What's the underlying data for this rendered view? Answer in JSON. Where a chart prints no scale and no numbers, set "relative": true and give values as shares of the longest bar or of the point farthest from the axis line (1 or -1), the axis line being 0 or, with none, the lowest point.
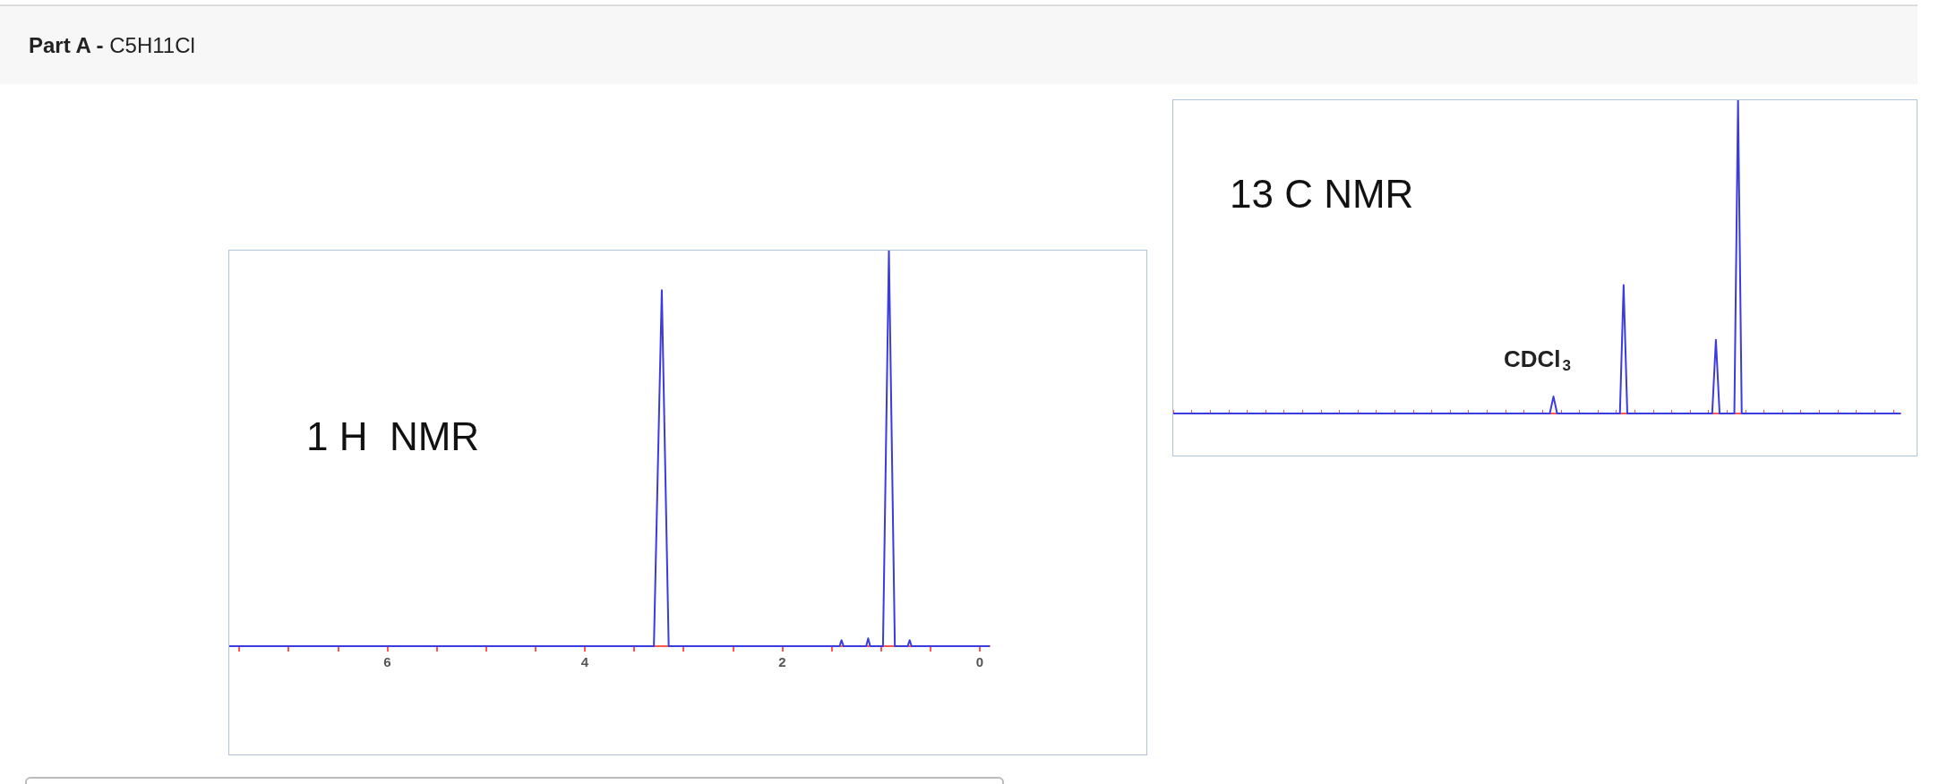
{
  "chart_data": [
    {
      "type": "other",
      "title": "Part A -",
      "subtitle": "C5H11Cl"
    },
    {
      "type": "line",
      "title": "1 H  NMR",
      "relative": true,
      "marker": "none",
      "tick_labels": "x",
      "xlim": [
        7.6,
        -0.1
      ],
      "xticks": [
        {
          "value": 7.5,
          "label": null
        },
        {
          "value": 7,
          "label": null
        },
        {
          "value": 6.5,
          "label": null
        },
        6,
        {
          "value": 5.5,
          "label": null
        },
        {
          "value": 5,
          "label": null
        },
        {
          "value": 4.5,
          "label": null
        },
        4,
        {
          "value": 3.5,
          "label": null
        },
        {
          "value": 3,
          "label": null
        },
        {
          "value": 2.5,
          "label": null
        },
        2,
        {
          "value": 1.5,
          "label": null
        },
        {
          "value": 1,
          "label": null
        },
        {
          "value": 0.5,
          "label": null
        },
        0
      ],
      "series": [
        {
          "color": "#3b3be0",
          "x": [
            7.6,
            3.3,
            3.22,
            3.15,
            1.42,
            1.4,
            1.38,
            1.15,
            1.13,
            1.11,
            0.98,
            0.92,
            0.86,
            0.73,
            0.71,
            0.69,
            -0.1
          ],
          "values": [
            0,
            0,
            0.9,
            0,
            0,
            0.015,
            0,
            0,
            0.02,
            0,
            0,
            1,
            0,
            0,
            0.015,
            0,
            0
          ]
        }
      ]
    },
    {
      "type": "line",
      "title": "13 C NMR",
      "relative": true,
      "marker": "none",
      "tick_labels": false,
      "annotations": [
        "CDCl$_{3}$"
      ],
      "categories": [
        null,
        null,
        null,
        null,
        null,
        null,
        null,
        null,
        null,
        null,
        null,
        null,
        null,
        null,
        null,
        null,
        null,
        null,
        null,
        null,
        null,
        null,
        null,
        null,
        null,
        null,
        null,
        null,
        null,
        null,
        null,
        null,
        null,
        null,
        null,
        null,
        null,
        null,
        null,
        null,
        null,
        null,
        null,
        null,
        null,
        null,
        null,
        null,
        null,
        null,
        null,
        null,
        null,
        null,
        null,
        null,
        null,
        null,
        null,
        null,
        null,
        null,
        null,
        null,
        null,
        null,
        null,
        null,
        null,
        null,
        null,
        null,
        null,
        null,
        null,
        null,
        null,
        null,
        null,
        null,
        null,
        null,
        null,
        null,
        null,
        null,
        null,
        null,
        null,
        null,
        null,
        null,
        null,
        null,
        null,
        null,
        null,
        null,
        null,
        null,
        null,
        null,
        null,
        null,
        null,
        null,
        null,
        null,
        null,
        null,
        null,
        null,
        null,
        null,
        null,
        null,
        null,
        null,
        null,
        null,
        null,
        null,
        null,
        null,
        null,
        null,
        null,
        null,
        null,
        null,
        null,
        null,
        null,
        null,
        null,
        null,
        null,
        null,
        null,
        null,
        null,
        null,
        null,
        null,
        null,
        null,
        null,
        null,
        null,
        null,
        null,
        null,
        null,
        null,
        null,
        null,
        null,
        null,
        null,
        null,
        null,
        null,
        null,
        null,
        null,
        null,
        null,
        null,
        null,
        null,
        null,
        null,
        null,
        null,
        null,
        null,
        null,
        null,
        null,
        null,
        null,
        null,
        null,
        null,
        null,
        null,
        null,
        null,
        null,
        null,
        null,
        null,
        null,
        null,
        null,
        null,
        null,
        null
      ],
      "series": [
        {
          "color": "#3b3be0",
          "values": [
            0,
            0,
            0,
            0,
            0,
            0,
            0,
            0,
            0,
            0,
            0,
            0,
            0,
            0,
            0,
            0,
            0,
            0,
            0,
            0,
            0,
            0,
            0,
            0,
            0,
            0,
            0,
            0,
            0,
            0,
            0,
            0,
            0,
            0,
            0,
            0,
            0,
            0,
            0,
            0,
            0,
            0,
            0,
            0,
            0,
            0,
            0,
            0,
            0,
            0,
            0,
            0,
            0,
            0,
            0,
            0,
            0,
            0,
            0,
            0,
            0,
            0,
            0,
            0,
            0,
            0,
            0,
            0,
            0,
            0,
            0,
            0,
            0,
            0,
            0,
            0,
            0,
            0,
            0,
            0,
            0,
            0,
            0,
            0,
            0,
            0,
            0,
            0,
            0,
            0,
            0,
            0,
            0,
            0,
            0,
            0,
            0,
            0,
            0,
            0,
            0,
            0,
            0,
            0.054,
            0,
            0,
            0,
            0,
            0,
            0,
            0,
            0,
            0,
            0,
            0,
            0,
            0,
            0,
            0,
            0,
            0,
            0,
            0.41,
            0,
            0,
            0,
            0,
            0,
            0,
            0,
            0,
            0,
            0,
            0,
            0,
            0,
            0,
            0,
            0,
            0,
            0,
            0,
            0,
            0,
            0,
            0,
            0,
            0.235,
            0,
            0,
            0,
            0,
            0,
            1,
            0,
            0,
            0,
            0,
            0,
            0,
            0,
            0,
            0,
            0,
            0,
            0,
            0,
            0,
            0,
            0,
            0,
            0,
            0,
            0,
            0,
            0,
            0,
            0,
            0,
            0,
            0,
            0,
            0,
            0,
            0,
            0,
            0,
            0,
            0,
            0,
            0,
            0,
            0,
            0,
            0,
            0,
            0,
            0
          ]
        }
      ]
    }
  ]
}
